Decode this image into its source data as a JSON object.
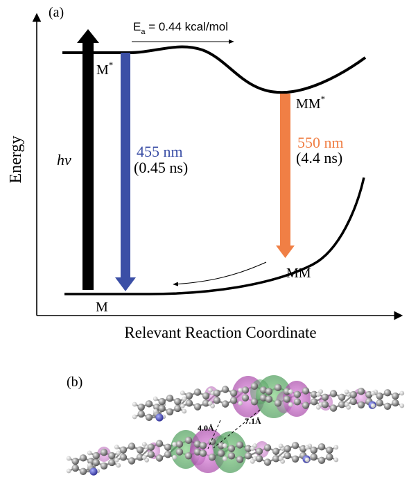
{
  "panel_a": {
    "label": "(a)",
    "y_axis_label": "Energy",
    "x_axis_label": "Relevant Reaction Coordinate",
    "activation": {
      "symbol": "E",
      "subscript": "a",
      "text": " = 0.44 kcal/mol"
    },
    "excitation_label": "hv",
    "states": {
      "m_star": {
        "base": "M",
        "sup": "*"
      },
      "mm_star": {
        "base": "MM",
        "sup": "*"
      },
      "mm": "MM",
      "m": "M"
    },
    "emission_m": {
      "wavelength": "455 nm",
      "lifetime": "(0.45 ns)"
    },
    "emission_mm": {
      "wavelength": "550 nm",
      "lifetime": "(4.4 ns)"
    },
    "colors": {
      "excitation_arrow": "#000000",
      "monomer_emission": "#3b4fa6",
      "excimer_emission": "#f07f45",
      "curves": "#000000"
    }
  },
  "panel_b": {
    "label": "(b)",
    "distance_1": "4.0Å",
    "distance_2": "7.1Å",
    "colors": {
      "carbon": "#8a8a8a",
      "hydrogen": "#d6d6d6",
      "nitrogen": "#4a4ab8",
      "orbital_green": "#4caf50",
      "orbital_magenta": "#c040c0"
    }
  }
}
